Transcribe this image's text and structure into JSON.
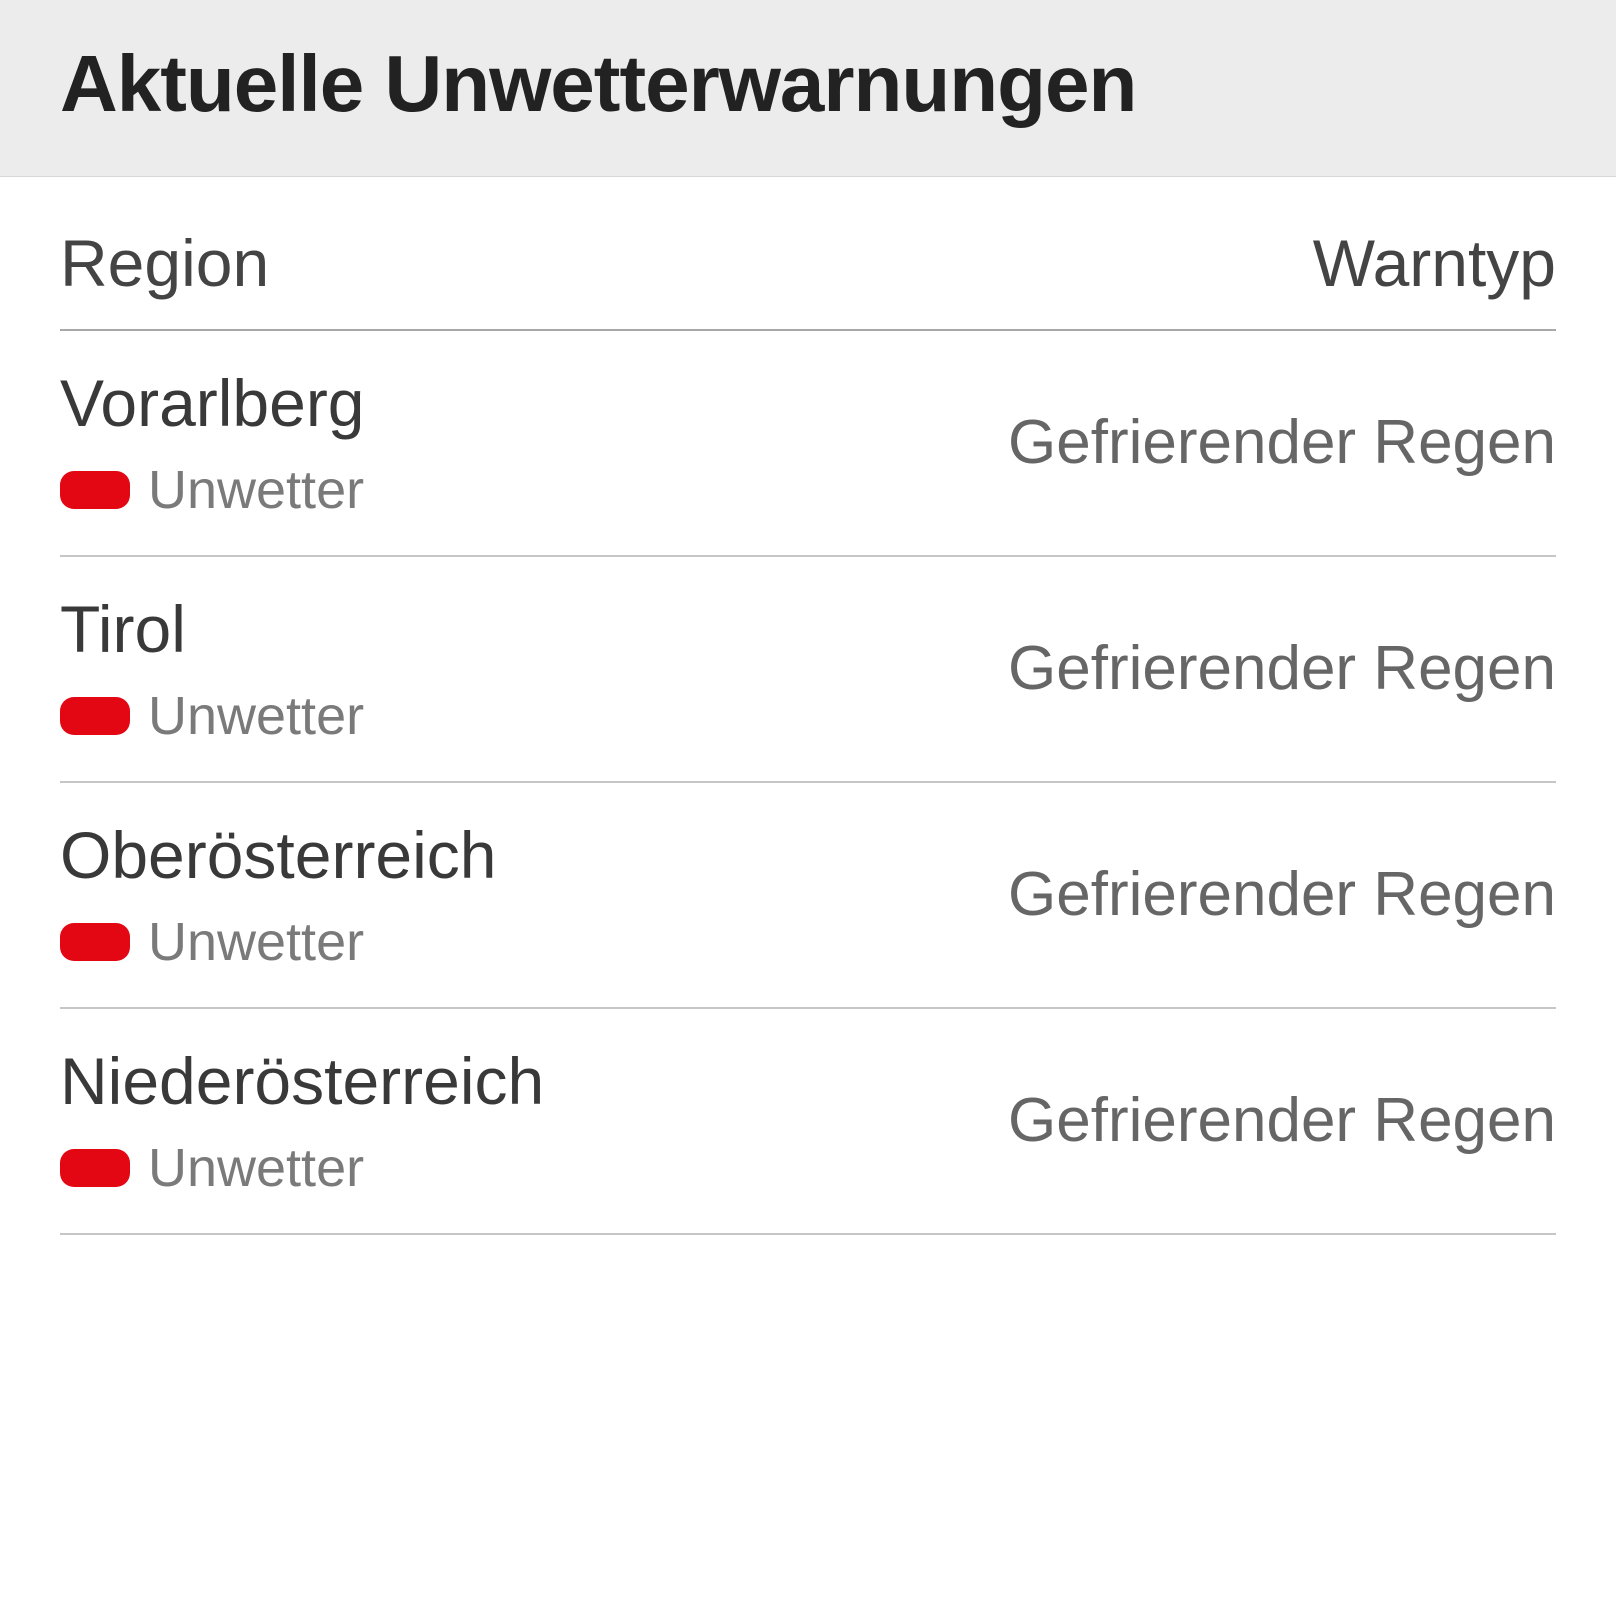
{
  "title": "Aktuelle Unwetterwarnungen",
  "columns": {
    "region": "Region",
    "warntyp": "Warntyp"
  },
  "badge_color": "#e30613",
  "colors": {
    "header_bg": "#ececec",
    "page_bg": "#ffffff",
    "title_text": "#222222",
    "col_text": "#444444",
    "region_text": "#393939",
    "badge_label_text": "#7a7a7a",
    "warntyp_text": "#666666",
    "thead_border": "#a8a8a8",
    "row_border": "#c6c6c6"
  },
  "rows": [
    {
      "region": "Vorarlberg",
      "badge_label": "Unwetter",
      "warntyp": "Gefrierender Regen"
    },
    {
      "region": "Tirol",
      "badge_label": "Unwetter",
      "warntyp": "Gefrierender Regen"
    },
    {
      "region": "Oberösterreich",
      "badge_label": "Unwetter",
      "warntyp": "Gefrierender Regen"
    },
    {
      "region": "Niederösterreich",
      "badge_label": "Unwetter",
      "warntyp": "Gefrierender Regen"
    }
  ]
}
